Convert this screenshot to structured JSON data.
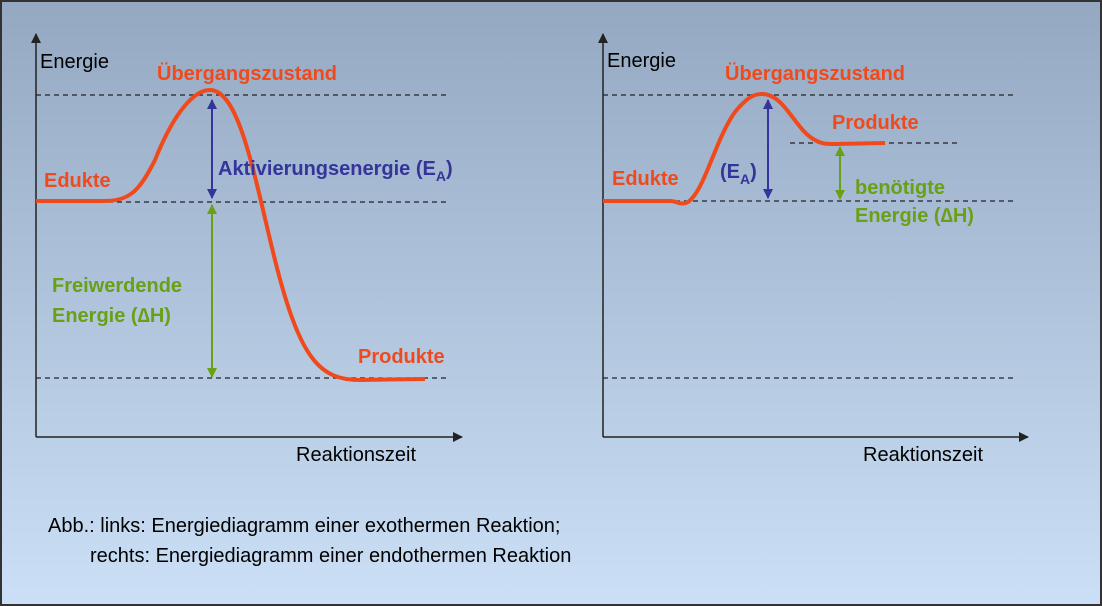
{
  "left": {
    "y_axis": "Energie",
    "x_axis": "Reaktionszeit",
    "transition": "Übergangszustand",
    "reactants": "Edukte",
    "products": "Produkte",
    "activation": {
      "text": "Aktivierungsenergie (E",
      "sub": "A",
      "close": ")"
    },
    "enthalpy": [
      "Freiwerdende",
      "Energie (∆H)"
    ]
  },
  "right": {
    "y_axis": "Energie",
    "x_axis": "Reaktionszeit",
    "transition": "Übergangszustand",
    "reactants": "Edukte",
    "products": "Produkte",
    "activation": {
      "text": "(E",
      "sub": "A",
      "close": ")"
    },
    "enthalpy": [
      "benötigte",
      "Energie (∆H)"
    ]
  },
  "caption": [
    "Abb.: links: Energiediagramm einer exothermen Reaktion;",
    "rechts: Energiediagramm einer endothermen Reaktion"
  ]
}
